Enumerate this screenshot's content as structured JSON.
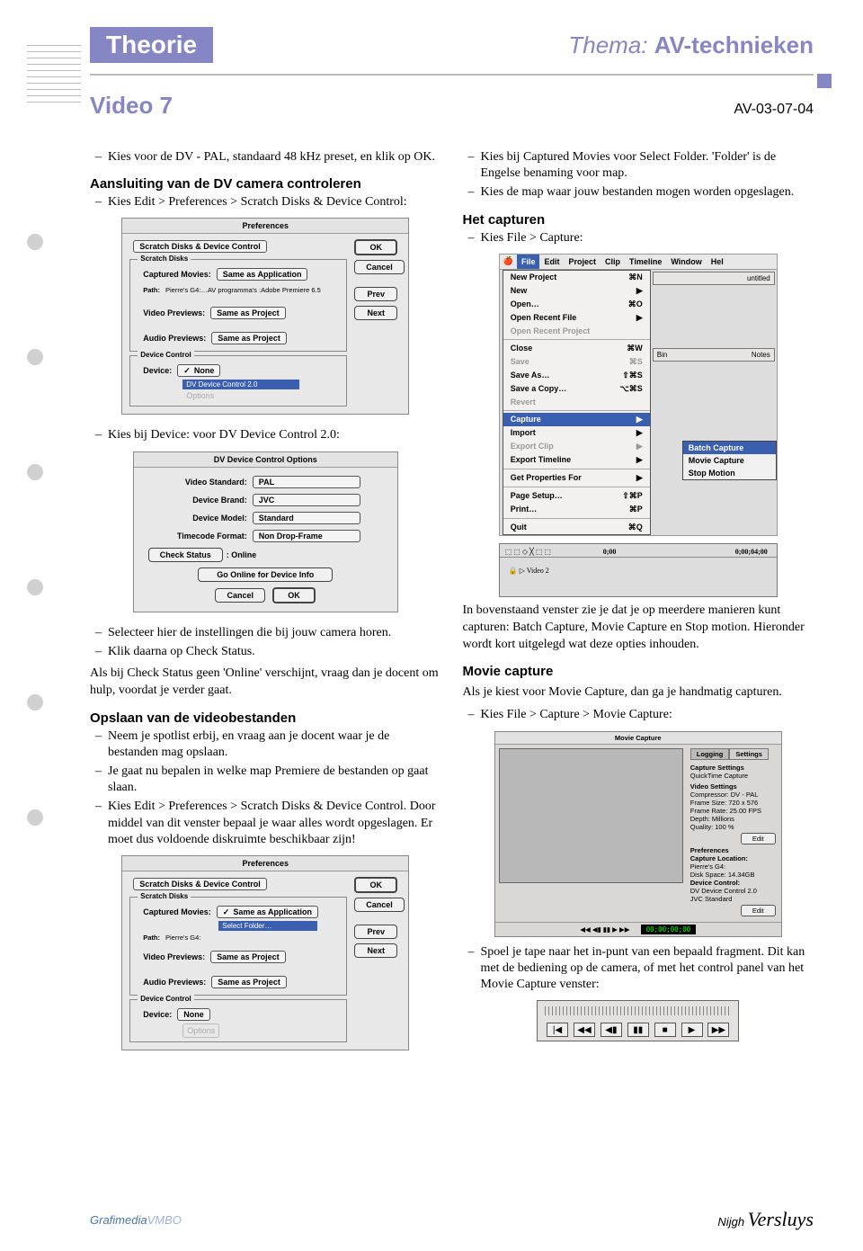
{
  "header": {
    "theorie": "Theorie",
    "thema_pre": "Thema: ",
    "thema_bold": "AV-technieken",
    "video": "Video 7",
    "code": "AV-03-07-04"
  },
  "colors": {
    "accent": "#8686c4"
  },
  "left": {
    "b1": "Kies voor de DV - PAL, standaard 48 kHz preset, en klik op OK.",
    "sec1": "Aansluiting van de DV camera controleren",
    "b2": "Kies Edit > Preferences > Scratch Disks & Device Control:",
    "b3": "Kies bij Device: voor DV Device Control 2.0:",
    "b4": "Selecteer hier de instellingen die bij jouw camera horen.",
    "b5": "Klik daarna op Check Status.",
    "p1": "Als bij Check Status geen 'Online' verschijnt, vraag dan je docent om hulp, voordat je verder gaat.",
    "sec2": "Opslaan van de videobestanden",
    "b6": "Neem je spotlist erbij, en vraag aan je docent waar je de bestanden mag opslaan.",
    "b7": "Je gaat nu bepalen in welke map Premiere de bestanden op gaat slaan.",
    "b8": "Kies Edit > Preferences > Scratch Disks & Device Control. Door middel van dit venster bepaal je waar alles wordt opgeslagen. Er moet dus voldoende diskruimte beschikbaar zijn!"
  },
  "right": {
    "b1": "Kies bij Captured Movies voor Select Folder. 'Folder' is de Engelse benaming voor map.",
    "b2": "Kies de map waar jouw bestanden mogen worden opgeslagen.",
    "sec1": "Het capturen",
    "b3": "Kies File > Capture:",
    "p1": "In bovenstaand venster zie je dat je op meerdere manieren kunt capturen: Batch Capture, Movie Capture en Stop motion. Hieronder wordt kort uitgelegd wat deze opties inhouden.",
    "sec2": "Movie capture",
    "p2": "Als je kiest voor Movie Capture, dan ga je handmatig capturen.",
    "b4": "Kies File > Capture > Movie Capture:",
    "b5": "Spoel je tape naar het in-punt van een bepaald fragment. Dit kan met de bediening op de camera, of met het control panel van het Movie Capture venster:"
  },
  "prefs": {
    "title": "Preferences",
    "dropdown": "Scratch Disks & Device Control",
    "scratch": "Scratch Disks",
    "cap_movies": "Captured Movies:",
    "same_app": "Same as Application",
    "path_label": "Path:",
    "path_val": "Pierre's G4:…AV programma's :Adobe Premiere 6.5",
    "vid_prev": "Video Previews:",
    "same_proj": "Same as Project",
    "aud_prev": "Audio Previews:",
    "devctl": "Device Control",
    "device": "Device:",
    "none": "None",
    "dvdc": "DV Device Control 2.0",
    "options": "Options",
    "ok": "OK",
    "cancel": "Cancel",
    "prev": "Prev",
    "next": "Next",
    "select_folder": "Select Folder…"
  },
  "dvopts": {
    "title": "DV Device Control Options",
    "vstd": "Video Standard:",
    "pal": "PAL",
    "brand": "Device Brand:",
    "jvc": "JVC",
    "model": "Device Model:",
    "std": "Standard",
    "tc": "Timecode Format:",
    "ndf": "Non Drop-Frame",
    "check": "Check Status",
    "online": ": Online",
    "goonline": "Go Online for Device Info",
    "cancel": "Cancel",
    "ok": "OK"
  },
  "filemenu": {
    "bar": [
      "File",
      "Edit",
      "Project",
      "Clip",
      "Timeline",
      "Window",
      "Hel"
    ],
    "items": [
      {
        "t": "New Project",
        "s": "⌘N"
      },
      {
        "t": "New",
        "s": "▶"
      },
      {
        "t": "Open…",
        "s": "⌘O"
      },
      {
        "t": "Open Recent File",
        "s": "▶"
      },
      {
        "t": "Open Recent Project",
        "s": "",
        "d": true
      },
      {
        "sep": true
      },
      {
        "t": "Close",
        "s": "⌘W"
      },
      {
        "t": "Save",
        "s": "⌘S",
        "d": true
      },
      {
        "t": "Save As…",
        "s": "⇧⌘S"
      },
      {
        "t": "Save a Copy…",
        "s": "⌥⌘S"
      },
      {
        "t": "Revert",
        "s": "",
        "d": true
      },
      {
        "sep": true
      },
      {
        "t": "Capture",
        "s": "▶",
        "sel": true
      },
      {
        "t": "Import",
        "s": "▶"
      },
      {
        "t": "Export Clip",
        "s": "▶",
        "d": true
      },
      {
        "t": "Export Timeline",
        "s": "▶"
      },
      {
        "sep": true
      },
      {
        "t": "Get Properties For",
        "s": "▶"
      },
      {
        "sep": true
      },
      {
        "t": "Page Setup…",
        "s": "⇧⌘P"
      },
      {
        "t": "Print…",
        "s": "⌘P"
      },
      {
        "sep": true
      },
      {
        "t": "Quit",
        "s": "⌘Q"
      }
    ],
    "sub": [
      "Batch Capture",
      "Movie Capture",
      "Stop Motion"
    ],
    "untitled": "untitled",
    "bin": "Bin",
    "notes": "Notes"
  },
  "movcap": {
    "title": "Movie Capture",
    "logging": "Logging",
    "settings": "Settings",
    "capset": "Capture Settings",
    "qtcap": "QuickTime Capture",
    "vset": "Video Settings",
    "comp": "Compressor: DV - PAL",
    "fsize": "Frame Size: 720 x 576",
    "fps": "Frame Rate: 25.00 FPS",
    "depth": "Depth: Millions",
    "qual": "Quality: 100 %",
    "edit": "Edit",
    "prefs": "Preferences",
    "caploc": "Capture Location:",
    "pierre": "Pierre's G4:",
    "disk": "Disk Space: 14.34GB",
    "devctl": "Device Control:",
    "dvdc": "DV Device Control 2.0",
    "jvc": "JVC Standard",
    "tc": "00;00;00;00"
  },
  "timeline2": {
    "label": "Video 2",
    "t1": "0;00",
    "t2": "0;00;04;00"
  },
  "footer": {
    "gm1": "Grafimedia",
    "gm2": "VMBO",
    "nv1": "Nijgh",
    "nv2": "Versluys"
  }
}
